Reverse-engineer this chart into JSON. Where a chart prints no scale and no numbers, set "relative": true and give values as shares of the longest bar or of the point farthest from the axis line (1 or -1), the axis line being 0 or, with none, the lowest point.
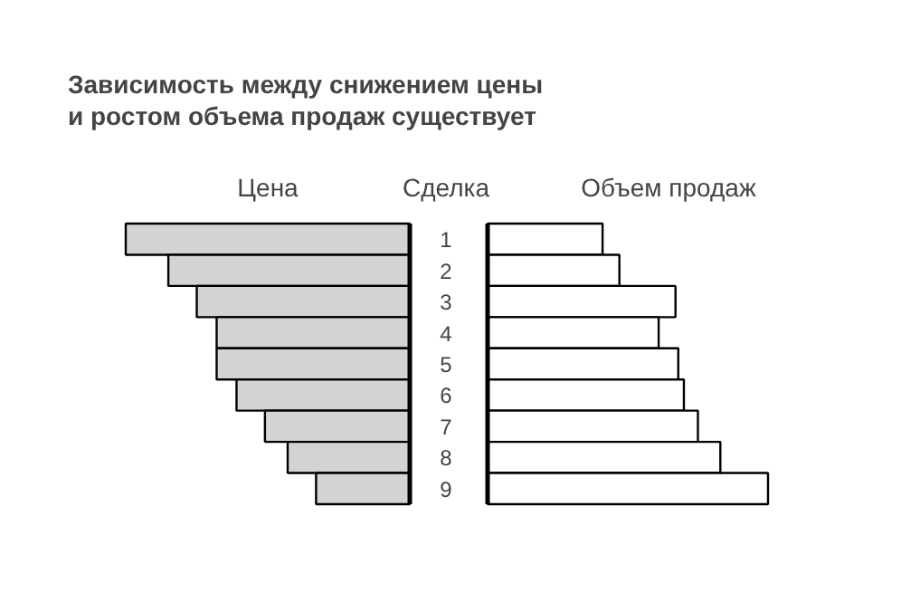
{
  "chart_data": [
    {
      "type": "bar",
      "orientation": "horizontal",
      "relative": true,
      "title": "Зависимость между снижением цены\nи ростом объема продаж существует",
      "ylabel": "Сделка",
      "categories": [
        "1",
        "2",
        "3",
        "4",
        "5",
        "6",
        "7",
        "8",
        "9"
      ],
      "series": [
        {
          "name": "Цена",
          "color": "#d3d3d3",
          "values": [
            1,
            0.85,
            0.75,
            0.68,
            0.68,
            0.61,
            0.51,
            0.43,
            0.33
          ]
        }
      ]
    },
    {
      "type": "bar",
      "orientation": "horizontal",
      "relative": true,
      "tick_labels": false,
      "categories": [
        "1",
        "2",
        "3",
        "4",
        "5",
        "6",
        "7",
        "8",
        "9"
      ],
      "series": [
        {
          "name": "Объем продаж",
          "color": "#ffffff",
          "values": [
            0.41,
            0.47,
            0.67,
            0.61,
            0.68,
            0.7,
            0.75,
            0.83,
            1
          ]
        }
      ]
    }
  ]
}
